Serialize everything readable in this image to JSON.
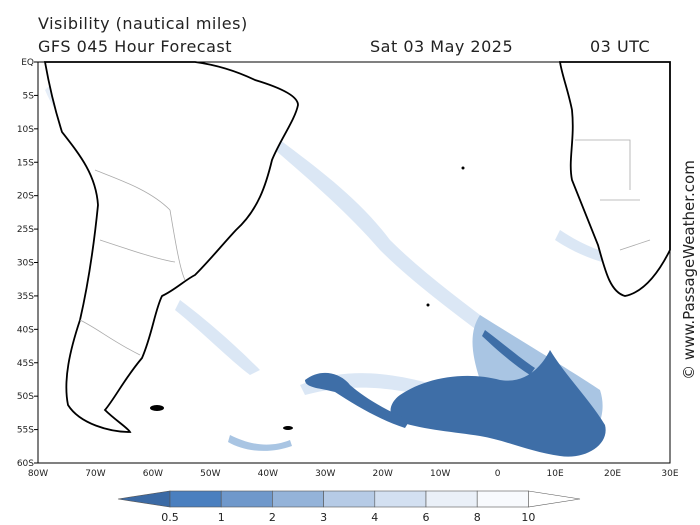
{
  "header": {
    "title": "Visibility (nautical miles)",
    "subtitle": "GFS 045 Hour Forecast",
    "date": "Sat 03 May 2025",
    "time": "03 UTC"
  },
  "map": {
    "lat_labels": [
      "EQ",
      "5S",
      "10S",
      "15S",
      "20S",
      "25S",
      "30S",
      "35S",
      "40S",
      "45S",
      "50S",
      "55S",
      "60S"
    ],
    "lon_labels": [
      "80W",
      "70W",
      "60W",
      "50W",
      "40W",
      "30W",
      "20W",
      "10W",
      "0",
      "10E",
      "20E",
      "30E"
    ]
  },
  "credit": "© www.PassageWeather.com",
  "colorbar": {
    "ticks": [
      "0.5",
      "1",
      "2",
      "3",
      "4",
      "6",
      "8",
      "10"
    ]
  }
}
